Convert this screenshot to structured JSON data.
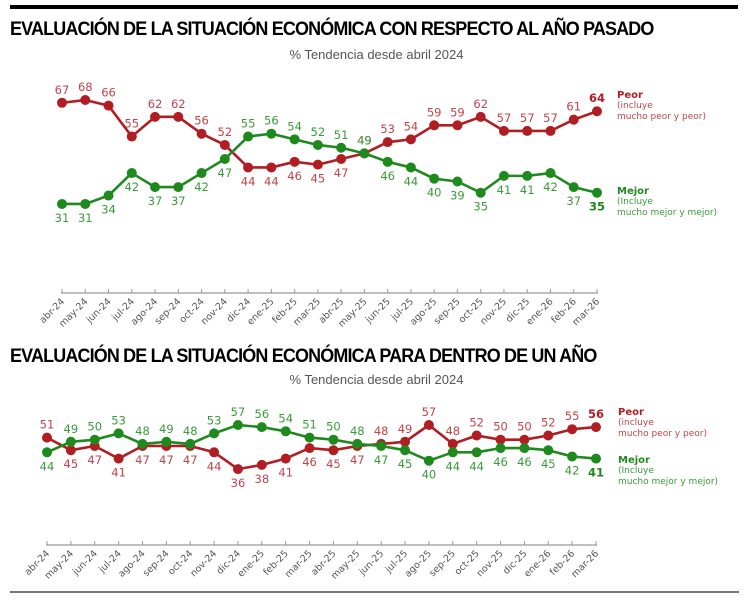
{
  "colors": {
    "peor": "#b01e23",
    "peor_label": "#c0444a",
    "mejor": "#1e8a1e",
    "mejor_label": "#3a9a3a",
    "axis": "#999999"
  },
  "chart_data": [
    {
      "type": "line",
      "title": "EVALUACIÓN DE LA SITUACIÓN ECONÓMICA CON RESPECTO AL AÑO PASADO",
      "subtitle": "% Tendencia desde abril 2024",
      "xlabel": "",
      "ylabel": "",
      "grid": false,
      "legend_placement": "right",
      "categories": [
        "abr-24",
        "may-24",
        "jun-24",
        "jul-24",
        "ago-24",
        "sep-24",
        "oct-24",
        "nov-24",
        "dic-24",
        "ene-25",
        "feb-25",
        "mar-25",
        "abr-25",
        "may-25",
        "jun-25",
        "jul-25",
        "ago-25",
        "sep-25",
        "oct-25",
        "nov-25",
        "dic-25",
        "ene-26",
        "feb-26",
        "mar-26"
      ],
      "series": [
        {
          "name": "Peor",
          "legend": {
            "name": "Peor",
            "line1": "(incluye",
            "line2": "mucho peor y peor)"
          },
          "values": [
            67,
            68,
            66,
            55,
            62,
            62,
            56,
            52,
            44,
            44,
            46,
            45,
            47,
            49,
            53,
            54,
            59,
            59,
            62,
            57,
            57,
            57,
            61,
            64
          ]
        },
        {
          "name": "Mejor",
          "legend": {
            "name": "Mejor",
            "line1": "(Incluye",
            "line2": "mucho mejor y mejor)"
          },
          "values": [
            31,
            31,
            34,
            42,
            37,
            37,
            42,
            47,
            55,
            56,
            54,
            52,
            51,
            49,
            46,
            44,
            40,
            39,
            35,
            41,
            41,
            42,
            37,
            35
          ]
        }
      ]
    },
    {
      "type": "line",
      "title": "EVALUACIÓN DE LA SITUACIÓN ECONÓMICA PARA DENTRO DE UN AÑO",
      "subtitle": "% Tendencia desde abril 2024",
      "xlabel": "",
      "ylabel": "",
      "grid": false,
      "legend_placement": "right",
      "categories": [
        "abr-24",
        "may-24",
        "jun-24",
        "jul-24",
        "ago-24",
        "sep-24",
        "oct-24",
        "nov-24",
        "dic-24",
        "ene-25",
        "feb-25",
        "mar-25",
        "abr-25",
        "may-25",
        "jun-25",
        "jul-25",
        "ago-25",
        "sep-25",
        "oct-25",
        "nov-25",
        "dic-25",
        "ene-26",
        "feb-26",
        "mar-26"
      ],
      "series": [
        {
          "name": "Peor",
          "legend": {
            "name": "Peor",
            "line1": "(incluye",
            "line2": "mucho peor y peor)"
          },
          "values": [
            51,
            45,
            47,
            41,
            47,
            47,
            47,
            44,
            36,
            38,
            41,
            46,
            45,
            47,
            48,
            49,
            57,
            48,
            52,
            50,
            50,
            52,
            55,
            56
          ]
        },
        {
          "name": "Mejor",
          "legend": {
            "name": "Mejor",
            "line1": "(Incluye",
            "line2": "mucho mejor y mejor)"
          },
          "values": [
            44,
            49,
            50,
            53,
            48,
            49,
            48,
            53,
            57,
            56,
            54,
            51,
            50,
            48,
            47,
            45,
            40,
            44,
            44,
            46,
            46,
            45,
            42,
            41
          ]
        }
      ]
    }
  ]
}
